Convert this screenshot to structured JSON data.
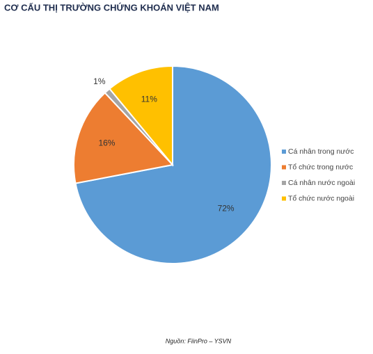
{
  "chart_data": {
    "type": "pie",
    "title": "CƠ CẤU THỊ TRƯỜNG CHỨNG KHOÁN VIỆT NAM",
    "categories": [
      "Cá nhân trong nước",
      "Tổ chức trong nước",
      "Cá nhân nước ngoài",
      "Tổ chức nước ngoài"
    ],
    "values": [
      72,
      16,
      1,
      11
    ],
    "value_labels": [
      "72%",
      "16%",
      "1%",
      "11%"
    ],
    "colors": [
      "#5b9bd5",
      "#ed7d31",
      "#a5a5a5",
      "#ffc000"
    ],
    "legend": "right",
    "source": "Nguồn: FiinPro – YSVN"
  }
}
